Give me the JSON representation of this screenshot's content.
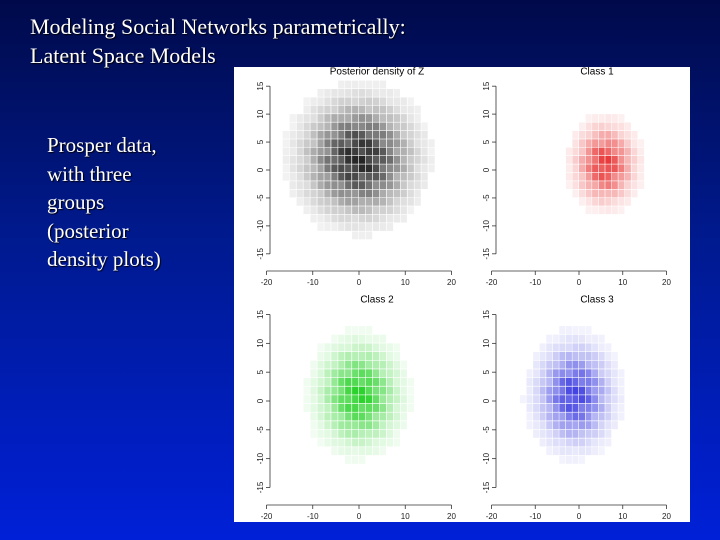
{
  "slide": {
    "title_lines": [
      "Modeling Social Networks parametrically:",
      "Latent  Space Models"
    ],
    "bullet_lines": [
      "Prosper data,",
      "with three",
      "groups",
      "(posterior",
      "density plots)"
    ]
  },
  "colors": {
    "background_top": "#000a4a",
    "background_bottom": "#0020d8",
    "text": "#ffffff",
    "overall": "#1a1a1a",
    "class1": "#e83030",
    "class2": "#20d020",
    "class3": "#3a3ae0"
  },
  "chart_data": [
    {
      "type": "heatmap",
      "title": "Posterior density of Z",
      "x_ticks": [
        "-20",
        "-10",
        "0",
        "10",
        "20"
      ],
      "y_ticks": [
        "-15",
        "-10",
        "-5",
        "0",
        "5",
        "10",
        "15"
      ],
      "xlim": [
        -24,
        24
      ],
      "ylim": [
        -17,
        17
      ],
      "density_center": [
        0,
        2
      ],
      "density_spread": [
        7,
        6
      ],
      "color": "#1a1a1a"
    },
    {
      "type": "heatmap",
      "title": "Class 1",
      "x_ticks": [
        "-20",
        "-10",
        "0",
        "10",
        "20"
      ],
      "y_ticks": [
        "-15",
        "-10",
        "-5",
        "0",
        "5",
        "10",
        "15"
      ],
      "xlim": [
        -24,
        24
      ],
      "ylim": [
        -17,
        17
      ],
      "density_center": [
        6,
        1
      ],
      "density_spread": [
        4,
        4
      ],
      "color": "#e83030"
    },
    {
      "type": "heatmap",
      "title": "Class 2",
      "x_ticks": [
        "-20",
        "-10",
        "0",
        "10",
        "20"
      ],
      "y_ticks": [
        "-15",
        "-10",
        "-5",
        "0",
        "5",
        "10",
        "15"
      ],
      "xlim": [
        -24,
        24
      ],
      "ylim": [
        -17,
        17
      ],
      "density_center": [
        0,
        1
      ],
      "density_spread": [
        5,
        5
      ],
      "color": "#20d020"
    },
    {
      "type": "heatmap",
      "title": "Class 3",
      "x_ticks": [
        "-20",
        "-10",
        "0",
        "10",
        "20"
      ],
      "y_ticks": [
        "-15",
        "-10",
        "-5",
        "0",
        "5",
        "10",
        "15"
      ],
      "xlim": [
        -24,
        24
      ],
      "ylim": [
        -17,
        17
      ],
      "density_center": [
        -1,
        1
      ],
      "density_spread": [
        5,
        5
      ],
      "color": "#3a3ae0"
    }
  ]
}
